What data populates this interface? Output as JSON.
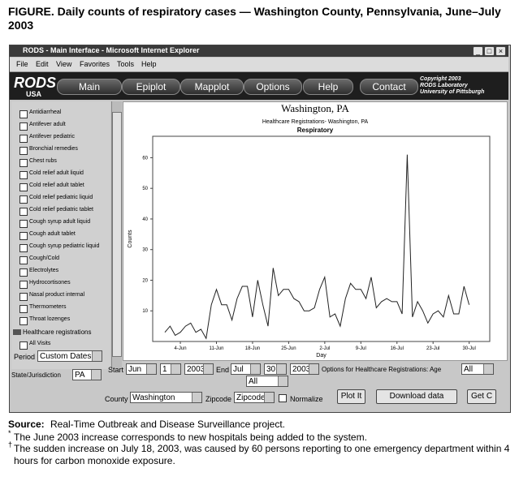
{
  "figure_title": "FIGURE. Daily counts of respiratory cases — Washington County, Pennsylvania, June–July 2003",
  "window": {
    "title": "RODS - Main Interface - Microsoft Internet Explorer",
    "menu": [
      "File",
      "Edit",
      "View",
      "Favorites",
      "Tools",
      "Help"
    ]
  },
  "app": {
    "logo": "RODS",
    "logo_sub": "USA",
    "nav": [
      "Main",
      "Epiplot",
      "Mapplot",
      "Options",
      "Help",
      "Contact"
    ],
    "copyright": [
      "Copyright 2003",
      "RODS Laboratory",
      "University of Pittsburgh"
    ]
  },
  "sidebar": {
    "items": [
      "Antidiarrheal",
      "Antifever adult",
      "Antifever pediatric",
      "Bronchial remedies",
      "Chest rubs",
      "Cold relief adult liquid",
      "Cold relief adult tablet",
      "Cold relief pediatric liquid",
      "Cold relief pediatric tablet",
      "Cough syrup adult liquid",
      "Cough adult tablet",
      "Cough syrup pediatric liquid",
      "Cough/Cold",
      "Electrolytes",
      "Hydrocortisones",
      "Nasal product internal",
      "Thermometers",
      "Throat lozenges"
    ],
    "group": "Healthcare registrations",
    "group_items": [
      "All Visits"
    ]
  },
  "controls": {
    "period_label": "Period",
    "period": "Custom Dates",
    "state_label": "State/Jurisdiction",
    "state": "PA",
    "start_label": "Start",
    "start_month": "Jun",
    "start_day": "1",
    "start_year": "2003",
    "end_label": "End",
    "end_month": "Jul",
    "end_day": "30",
    "end_year": "2003",
    "options_label": "Options for Healthcare Registrations: Age",
    "age": "All",
    "second": "All",
    "county_label": "County",
    "county": "Washington",
    "zip_label": "Zipcode",
    "zip": "Zipcode",
    "normalize": "Normalize",
    "plot": "Plot It",
    "download": "Download data",
    "get": "Get C"
  },
  "chart_data": {
    "type": "line",
    "title": "Washington, PA",
    "subtitle": "Healthcare Registrations- Washington, PA",
    "caption": "Respiratory",
    "x_label": "Day",
    "y_label": "Counts",
    "color": "#222222",
    "categories": [
      null,
      null,
      null,
      "4-Jun",
      null,
      null,
      null,
      null,
      null,
      null,
      "11-Jun",
      null,
      null,
      null,
      null,
      null,
      null,
      "18-Jun",
      null,
      null,
      null,
      null,
      null,
      null,
      "25-Jun",
      null,
      null,
      null,
      null,
      null,
      null,
      "2-Jul",
      null,
      null,
      null,
      null,
      null,
      null,
      "9-Jul",
      null,
      null,
      null,
      null,
      null,
      null,
      "16-Jul",
      null,
      null,
      null,
      null,
      null,
      null,
      "23-Jul",
      null,
      null,
      null,
      null,
      null,
      null,
      "30-Jul"
    ],
    "values": [
      3,
      5,
      2,
      3,
      5,
      6,
      3,
      4,
      1,
      12,
      17,
      12,
      12,
      7,
      14,
      18,
      18,
      8,
      20,
      12,
      5,
      24,
      15,
      17,
      17,
      14,
      13,
      10,
      10,
      11,
      17,
      21,
      8,
      9,
      5,
      14,
      19,
      17,
      17,
      14,
      21,
      11,
      13,
      14,
      13,
      13,
      9,
      61,
      8,
      13,
      10,
      6,
      9,
      10,
      8,
      15,
      9,
      9,
      18,
      12
    ],
    "ylim": [
      0,
      67
    ],
    "yticks": [
      10,
      20,
      30,
      40,
      50,
      60
    ]
  },
  "footnotes": {
    "source_label": "Source:",
    "source": "Real-Time Outbreak and Disease Surveillance project.",
    "notes": [
      {
        "mark": "*",
        "text": "The June 2003 increase corresponds to new hospitals being added to the system."
      },
      {
        "mark": "†",
        "text": "The sudden increase on July 18, 2003, was caused by 60 persons reporting to one emergency department within 4 hours for carbon monoxide exposure."
      }
    ]
  }
}
